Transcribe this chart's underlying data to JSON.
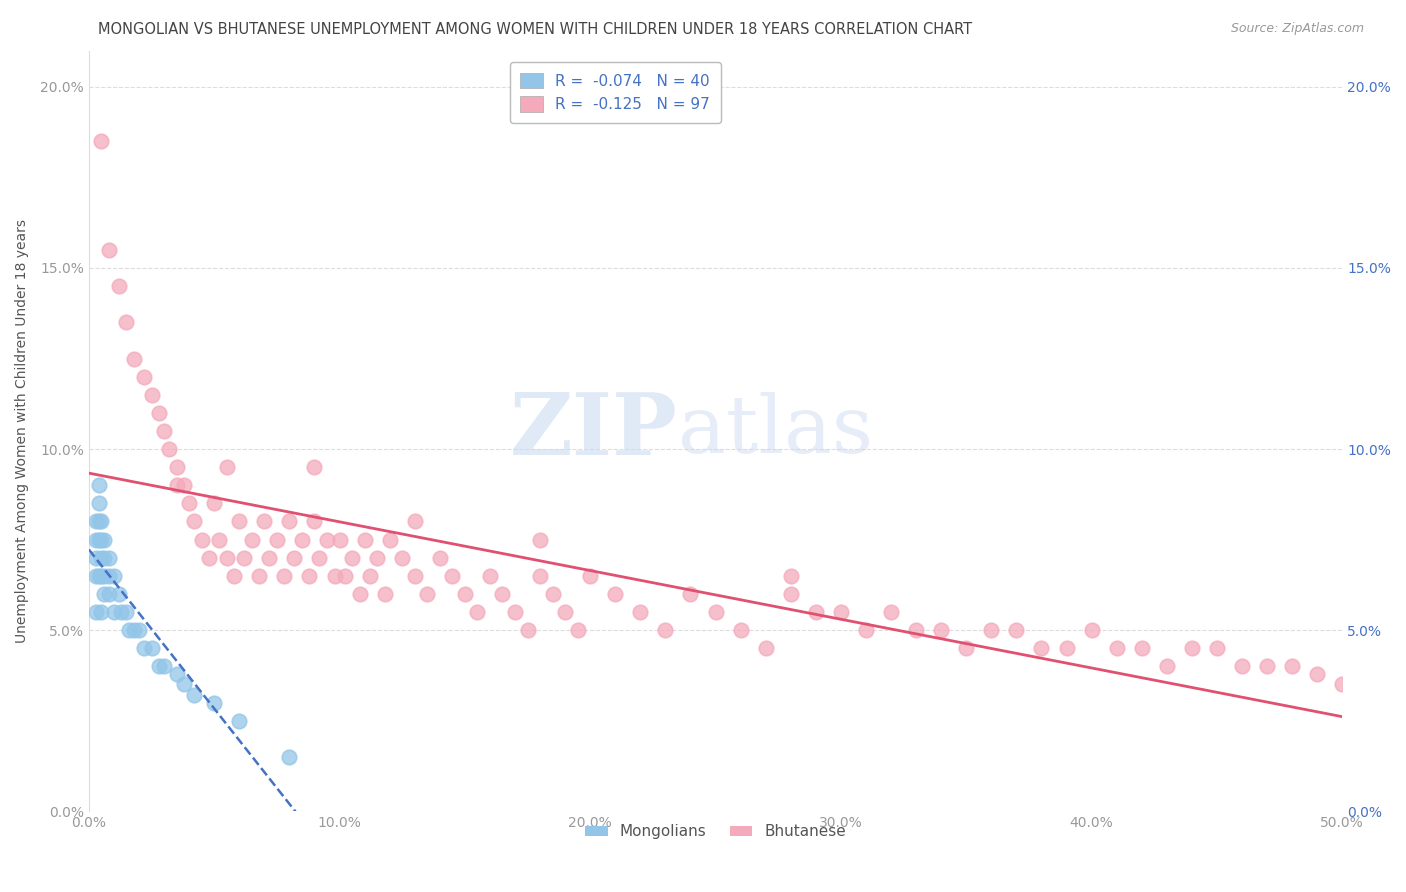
{
  "title": "MONGOLIAN VS BHUTANESE UNEMPLOYMENT AMONG WOMEN WITH CHILDREN UNDER 18 YEARS CORRELATION CHART",
  "source": "Source: ZipAtlas.com",
  "xlabel": "",
  "ylabel": "Unemployment Among Women with Children Under 18 years",
  "xlim": [
    0.0,
    0.5
  ],
  "ylim": [
    0.0,
    0.21
  ],
  "xticks": [
    0.0,
    0.1,
    0.2,
    0.3,
    0.4,
    0.5
  ],
  "xticklabels": [
    "0.0%",
    "10.0%",
    "20.0%",
    "30.0%",
    "40.0%",
    "50.0%"
  ],
  "yticks": [
    0.0,
    0.05,
    0.1,
    0.15,
    0.2
  ],
  "yticklabels": [
    "0.0%",
    "5.0%",
    "10.0%",
    "15.0%",
    "20.0%"
  ],
  "mongolian_color": "#92C5E8",
  "bhutanese_color": "#F4AABB",
  "mongolian_R": -0.074,
  "mongolian_N": 40,
  "bhutanese_R": -0.125,
  "bhutanese_N": 97,
  "mongolian_trendline_color": "#4472C4",
  "bhutanese_trendline_color": "#E05070",
  "watermark_zip": "ZIP",
  "watermark_atlas": "atlas",
  "watermark_color_zip": "#C5D8F0",
  "watermark_color_atlas": "#C5D8F0",
  "legend_label_mongolian": "Mongolians",
  "legend_label_bhutanese": "Bhutanese",
  "mongolian_x": [
    0.003,
    0.003,
    0.003,
    0.003,
    0.003,
    0.004,
    0.004,
    0.004,
    0.004,
    0.004,
    0.005,
    0.005,
    0.005,
    0.005,
    0.005,
    0.006,
    0.006,
    0.006,
    0.006,
    0.008,
    0.008,
    0.008,
    0.01,
    0.01,
    0.012,
    0.013,
    0.015,
    0.016,
    0.018,
    0.02,
    0.022,
    0.025,
    0.028,
    0.03,
    0.035,
    0.038,
    0.042,
    0.05,
    0.06,
    0.08
  ],
  "mongolian_y": [
    0.08,
    0.075,
    0.07,
    0.065,
    0.055,
    0.09,
    0.085,
    0.08,
    0.075,
    0.065,
    0.08,
    0.075,
    0.07,
    0.065,
    0.055,
    0.075,
    0.07,
    0.065,
    0.06,
    0.07,
    0.065,
    0.06,
    0.065,
    0.055,
    0.06,
    0.055,
    0.055,
    0.05,
    0.05,
    0.05,
    0.045,
    0.045,
    0.04,
    0.04,
    0.038,
    0.035,
    0.032,
    0.03,
    0.025,
    0.015
  ],
  "bhutanese_x": [
    0.005,
    0.008,
    0.012,
    0.015,
    0.018,
    0.022,
    0.025,
    0.028,
    0.03,
    0.032,
    0.035,
    0.038,
    0.04,
    0.042,
    0.045,
    0.048,
    0.05,
    0.052,
    0.055,
    0.058,
    0.06,
    0.062,
    0.065,
    0.068,
    0.07,
    0.072,
    0.075,
    0.078,
    0.08,
    0.082,
    0.085,
    0.088,
    0.09,
    0.092,
    0.095,
    0.098,
    0.1,
    0.102,
    0.105,
    0.108,
    0.11,
    0.112,
    0.115,
    0.118,
    0.12,
    0.125,
    0.13,
    0.135,
    0.14,
    0.145,
    0.15,
    0.155,
    0.16,
    0.165,
    0.17,
    0.175,
    0.18,
    0.185,
    0.19,
    0.195,
    0.2,
    0.21,
    0.22,
    0.23,
    0.24,
    0.25,
    0.26,
    0.27,
    0.28,
    0.29,
    0.3,
    0.31,
    0.32,
    0.33,
    0.34,
    0.35,
    0.36,
    0.37,
    0.38,
    0.39,
    0.4,
    0.41,
    0.42,
    0.43,
    0.44,
    0.45,
    0.46,
    0.47,
    0.48,
    0.49,
    0.5,
    0.035,
    0.055,
    0.09,
    0.13,
    0.18,
    0.28
  ],
  "bhutanese_y": [
    0.185,
    0.155,
    0.145,
    0.135,
    0.125,
    0.12,
    0.115,
    0.11,
    0.105,
    0.1,
    0.095,
    0.09,
    0.085,
    0.08,
    0.075,
    0.07,
    0.085,
    0.075,
    0.07,
    0.065,
    0.08,
    0.07,
    0.075,
    0.065,
    0.08,
    0.07,
    0.075,
    0.065,
    0.08,
    0.07,
    0.075,
    0.065,
    0.08,
    0.07,
    0.075,
    0.065,
    0.075,
    0.065,
    0.07,
    0.06,
    0.075,
    0.065,
    0.07,
    0.06,
    0.075,
    0.07,
    0.065,
    0.06,
    0.07,
    0.065,
    0.06,
    0.055,
    0.065,
    0.06,
    0.055,
    0.05,
    0.065,
    0.06,
    0.055,
    0.05,
    0.065,
    0.06,
    0.055,
    0.05,
    0.06,
    0.055,
    0.05,
    0.045,
    0.06,
    0.055,
    0.055,
    0.05,
    0.055,
    0.05,
    0.05,
    0.045,
    0.05,
    0.05,
    0.045,
    0.045,
    0.05,
    0.045,
    0.045,
    0.04,
    0.045,
    0.045,
    0.04,
    0.04,
    0.04,
    0.038,
    0.035,
    0.09,
    0.095,
    0.095,
    0.08,
    0.075,
    0.065
  ],
  "bg_color": "#FFFFFF",
  "title_color": "#444444",
  "title_fontsize": 10.5,
  "axis_label_color": "#555555",
  "tick_color": "#999999",
  "right_tick_color": "#4472C4"
}
